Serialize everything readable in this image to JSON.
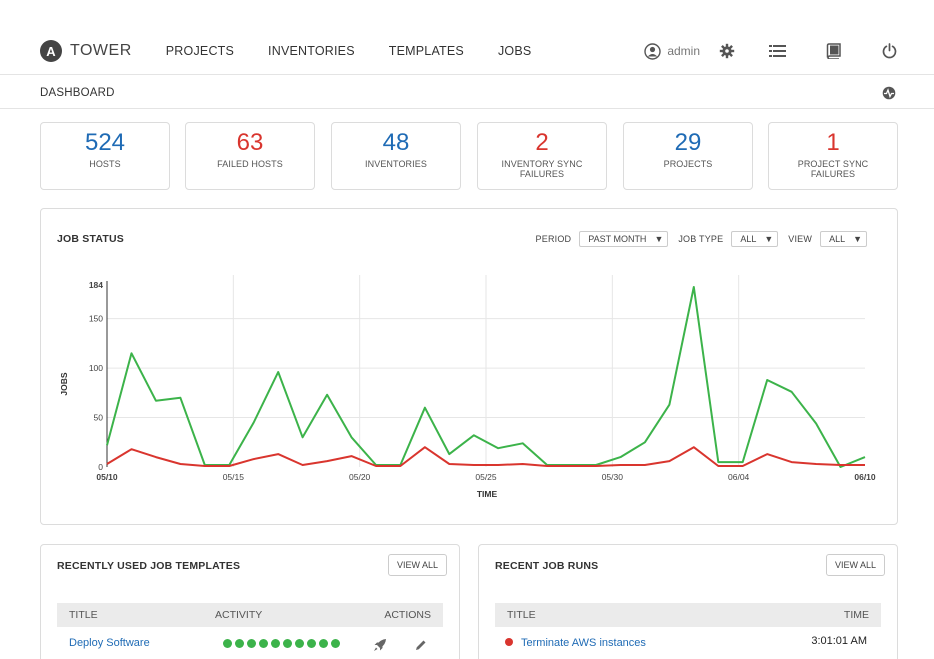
{
  "nav": {
    "brand_letter": "A",
    "brand": "TOWER",
    "links": [
      "PROJECTS",
      "INVENTORIES",
      "TEMPLATES",
      "JOBS"
    ],
    "user": "admin",
    "icons": [
      "user-icon",
      "gear-icon",
      "list-icon",
      "book-icon",
      "power-icon"
    ]
  },
  "breadcrumb": "DASHBOARD",
  "breadcrumb_icon": "activity-stream-icon",
  "counts": [
    {
      "value": "524",
      "label": "HOSTS",
      "color": "#1f6bb5"
    },
    {
      "value": "63",
      "label": "FAILED HOSTS",
      "color": "#d9352e"
    },
    {
      "value": "48",
      "label": "INVENTORIES",
      "color": "#1f6bb5"
    },
    {
      "value": "2",
      "label": "INVENTORY SYNC FAILURES",
      "color": "#d9352e"
    },
    {
      "value": "29",
      "label": "PROJECTS",
      "color": "#1f6bb5"
    },
    {
      "value": "1",
      "label": "PROJECT SYNC FAILURES",
      "color": "#d9352e"
    }
  ],
  "job_status": {
    "title": "JOB STATUS",
    "filters": {
      "period_label": "PERIOD",
      "period_value": "PAST MONTH",
      "job_type_label": "JOB TYPE",
      "job_type_value": "ALL",
      "view_label": "VIEW",
      "view_value": "ALL"
    }
  },
  "chart_data": {
    "type": "line",
    "xlabel": "TIME",
    "ylabel": "JOBS",
    "ylim": [
      0,
      184
    ],
    "yticks": [
      0,
      50,
      100,
      150,
      184
    ],
    "xtick_labels": [
      "05/10",
      "05/15",
      "05/20",
      "05/25",
      "05/30",
      "06/04",
      "06/10"
    ],
    "grid": true,
    "series": [
      {
        "color": "#3cb34a",
        "values": [
          22,
          115,
          67,
          70,
          2,
          2,
          45,
          96,
          30,
          73,
          30,
          2,
          2,
          60,
          13,
          32,
          19,
          24,
          2,
          2,
          2,
          10,
          25,
          63,
          182,
          5,
          5,
          88,
          76,
          44,
          0,
          10
        ]
      },
      {
        "color": "#d9352e",
        "values": [
          3,
          18,
          10,
          3,
          1,
          1,
          8,
          13,
          2,
          6,
          11,
          1,
          1,
          20,
          3,
          2,
          2,
          3,
          1,
          1,
          1,
          2,
          2,
          6,
          20,
          1,
          1,
          13,
          5,
          3,
          2,
          2
        ]
      }
    ]
  },
  "templates": {
    "title": "RECENTLY USED JOB TEMPLATES",
    "view_all": "VIEW ALL",
    "headers": [
      "TITLE",
      "ACTIVITY",
      "ACTIONS"
    ],
    "rows": [
      {
        "title": "Deploy Software",
        "activity": [
          "success",
          "success",
          "success",
          "success",
          "success",
          "success",
          "success",
          "success",
          "success",
          "success"
        ]
      }
    ]
  },
  "runs": {
    "title": "RECENT JOB RUNS",
    "view_all": "VIEW ALL",
    "headers": [
      "TITLE",
      "TIME"
    ],
    "rows": [
      {
        "title": "Terminate AWS instances",
        "time": "3:01:01 AM",
        "status": "failed"
      }
    ]
  }
}
